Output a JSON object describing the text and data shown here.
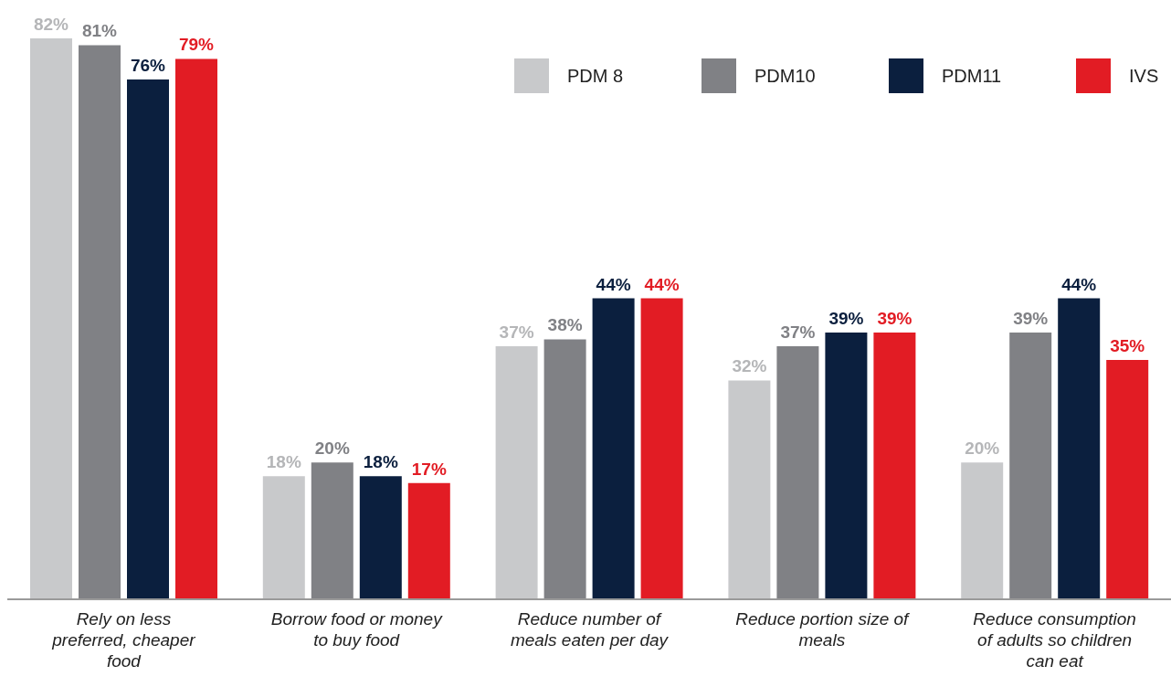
{
  "chart_data": {
    "type": "bar",
    "categories": [
      "Rely on less preferred, cheaper food",
      "Borrow food or money to buy food",
      "Reduce number of meals eaten per day",
      "Reduce portion size of meals",
      "Reduce consumption of adults so children can eat"
    ],
    "series": [
      {
        "name": "PDM 8",
        "color": "#c8c9cb",
        "values": [
          82,
          18,
          37,
          32,
          20
        ],
        "value_labels": [
          "82%",
          "18%",
          "37%",
          "32%",
          "20%"
        ]
      },
      {
        "name": "PDM10",
        "color": "#808185",
        "values": [
          81,
          20,
          38,
          37,
          39
        ],
        "value_labels": [
          "81%",
          "20%",
          "38%",
          "37%",
          "39%"
        ]
      },
      {
        "name": "PDM11",
        "color": "#0b1f3e",
        "values": [
          76,
          18,
          44,
          39,
          44
        ],
        "value_labels": [
          "76%",
          "18%",
          "44%",
          "39%",
          "44%"
        ]
      },
      {
        "name": "IVS",
        "color": "#e21c24",
        "values": [
          79,
          17,
          44,
          39,
          35
        ],
        "value_labels": [
          "79%",
          "17%",
          "44%",
          "39%",
          "35%"
        ]
      }
    ],
    "grid": false,
    "legend": "top right"
  }
}
